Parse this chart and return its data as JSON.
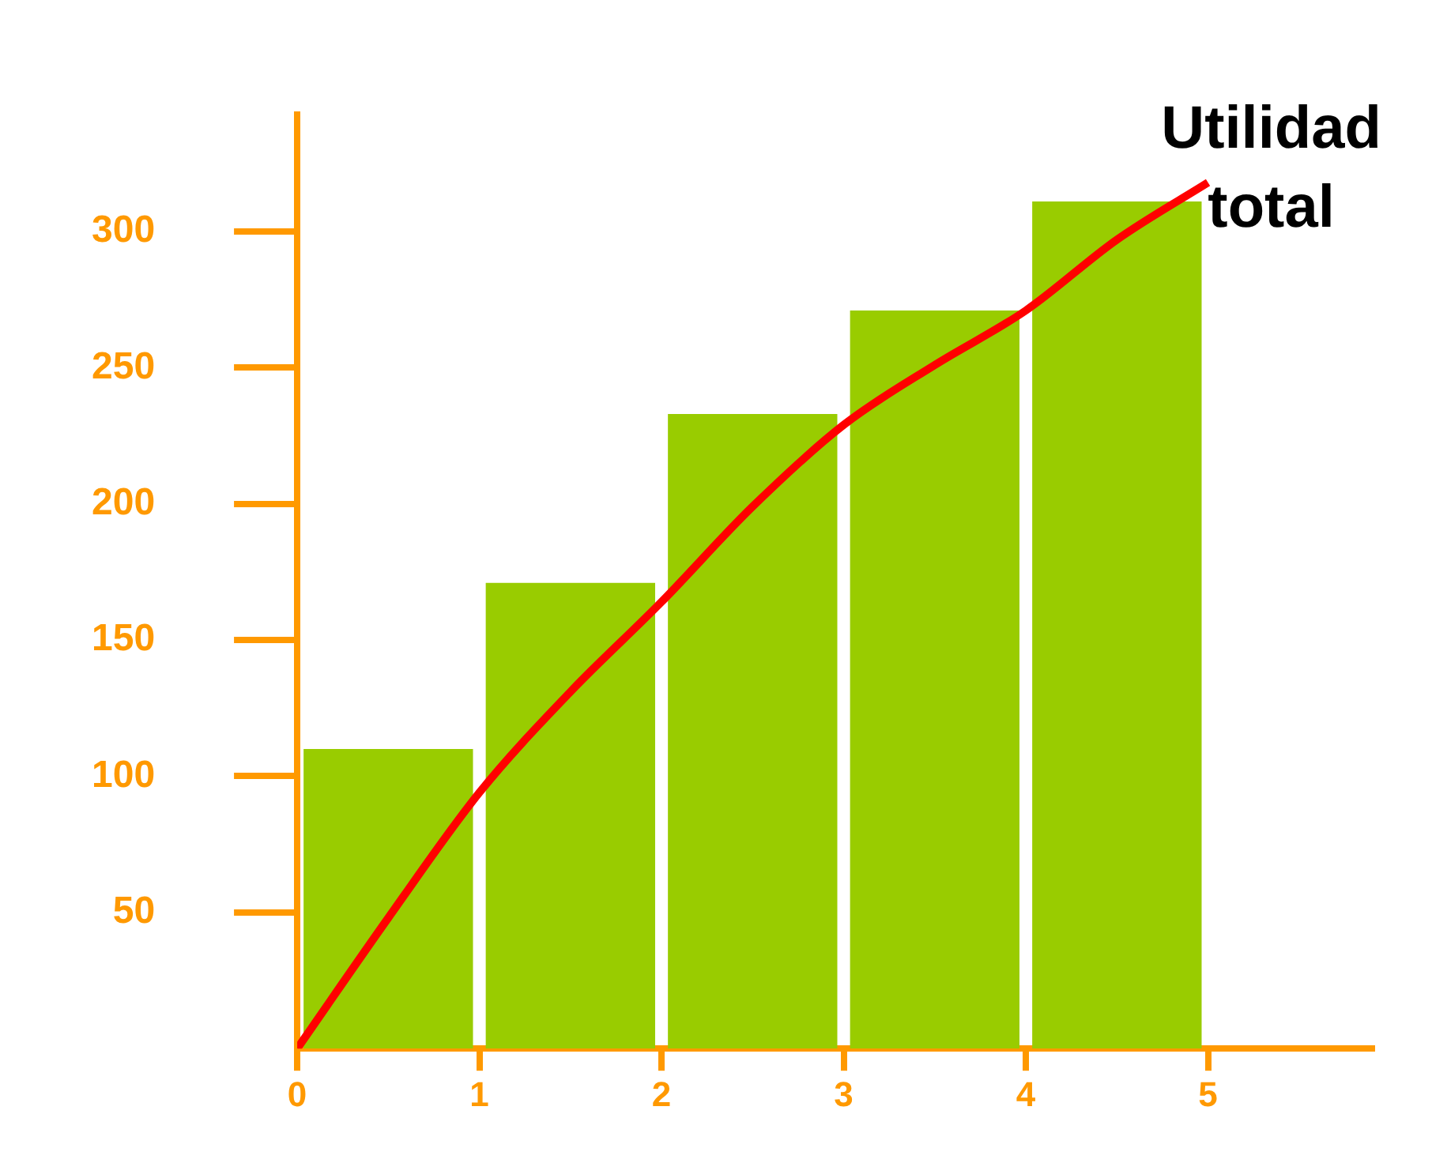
{
  "chart_data": {
    "type": "histogram",
    "bins": [
      0,
      1,
      2,
      3,
      4,
      5
    ],
    "values": [
      110,
      171,
      233,
      271,
      311
    ],
    "color": "#99cc00",
    "series": [
      {
        "type": "line",
        "color": "#ff0000",
        "x": [
          0,
          0.5,
          1,
          1.5,
          2,
          2.5,
          3,
          3.5,
          4,
          4.5,
          5
        ],
        "values": [
          0,
          48,
          94,
          131,
          164,
          199,
          229,
          251,
          271,
          297,
          318
        ]
      }
    ],
    "xlim": [
      0,
      5.9
    ],
    "xticks": [
      0,
      1,
      2,
      3,
      4,
      5
    ],
    "ylim": [
      0,
      343
    ],
    "yticks": [
      50,
      100,
      150,
      200,
      250,
      300
    ],
    "annotations": [
      {
        "text": "Utilidad total",
        "x": 5,
        "y": 318
      }
    ],
    "grid": false,
    "legend": false,
    "marker": "none",
    "line_style": "solid"
  }
}
